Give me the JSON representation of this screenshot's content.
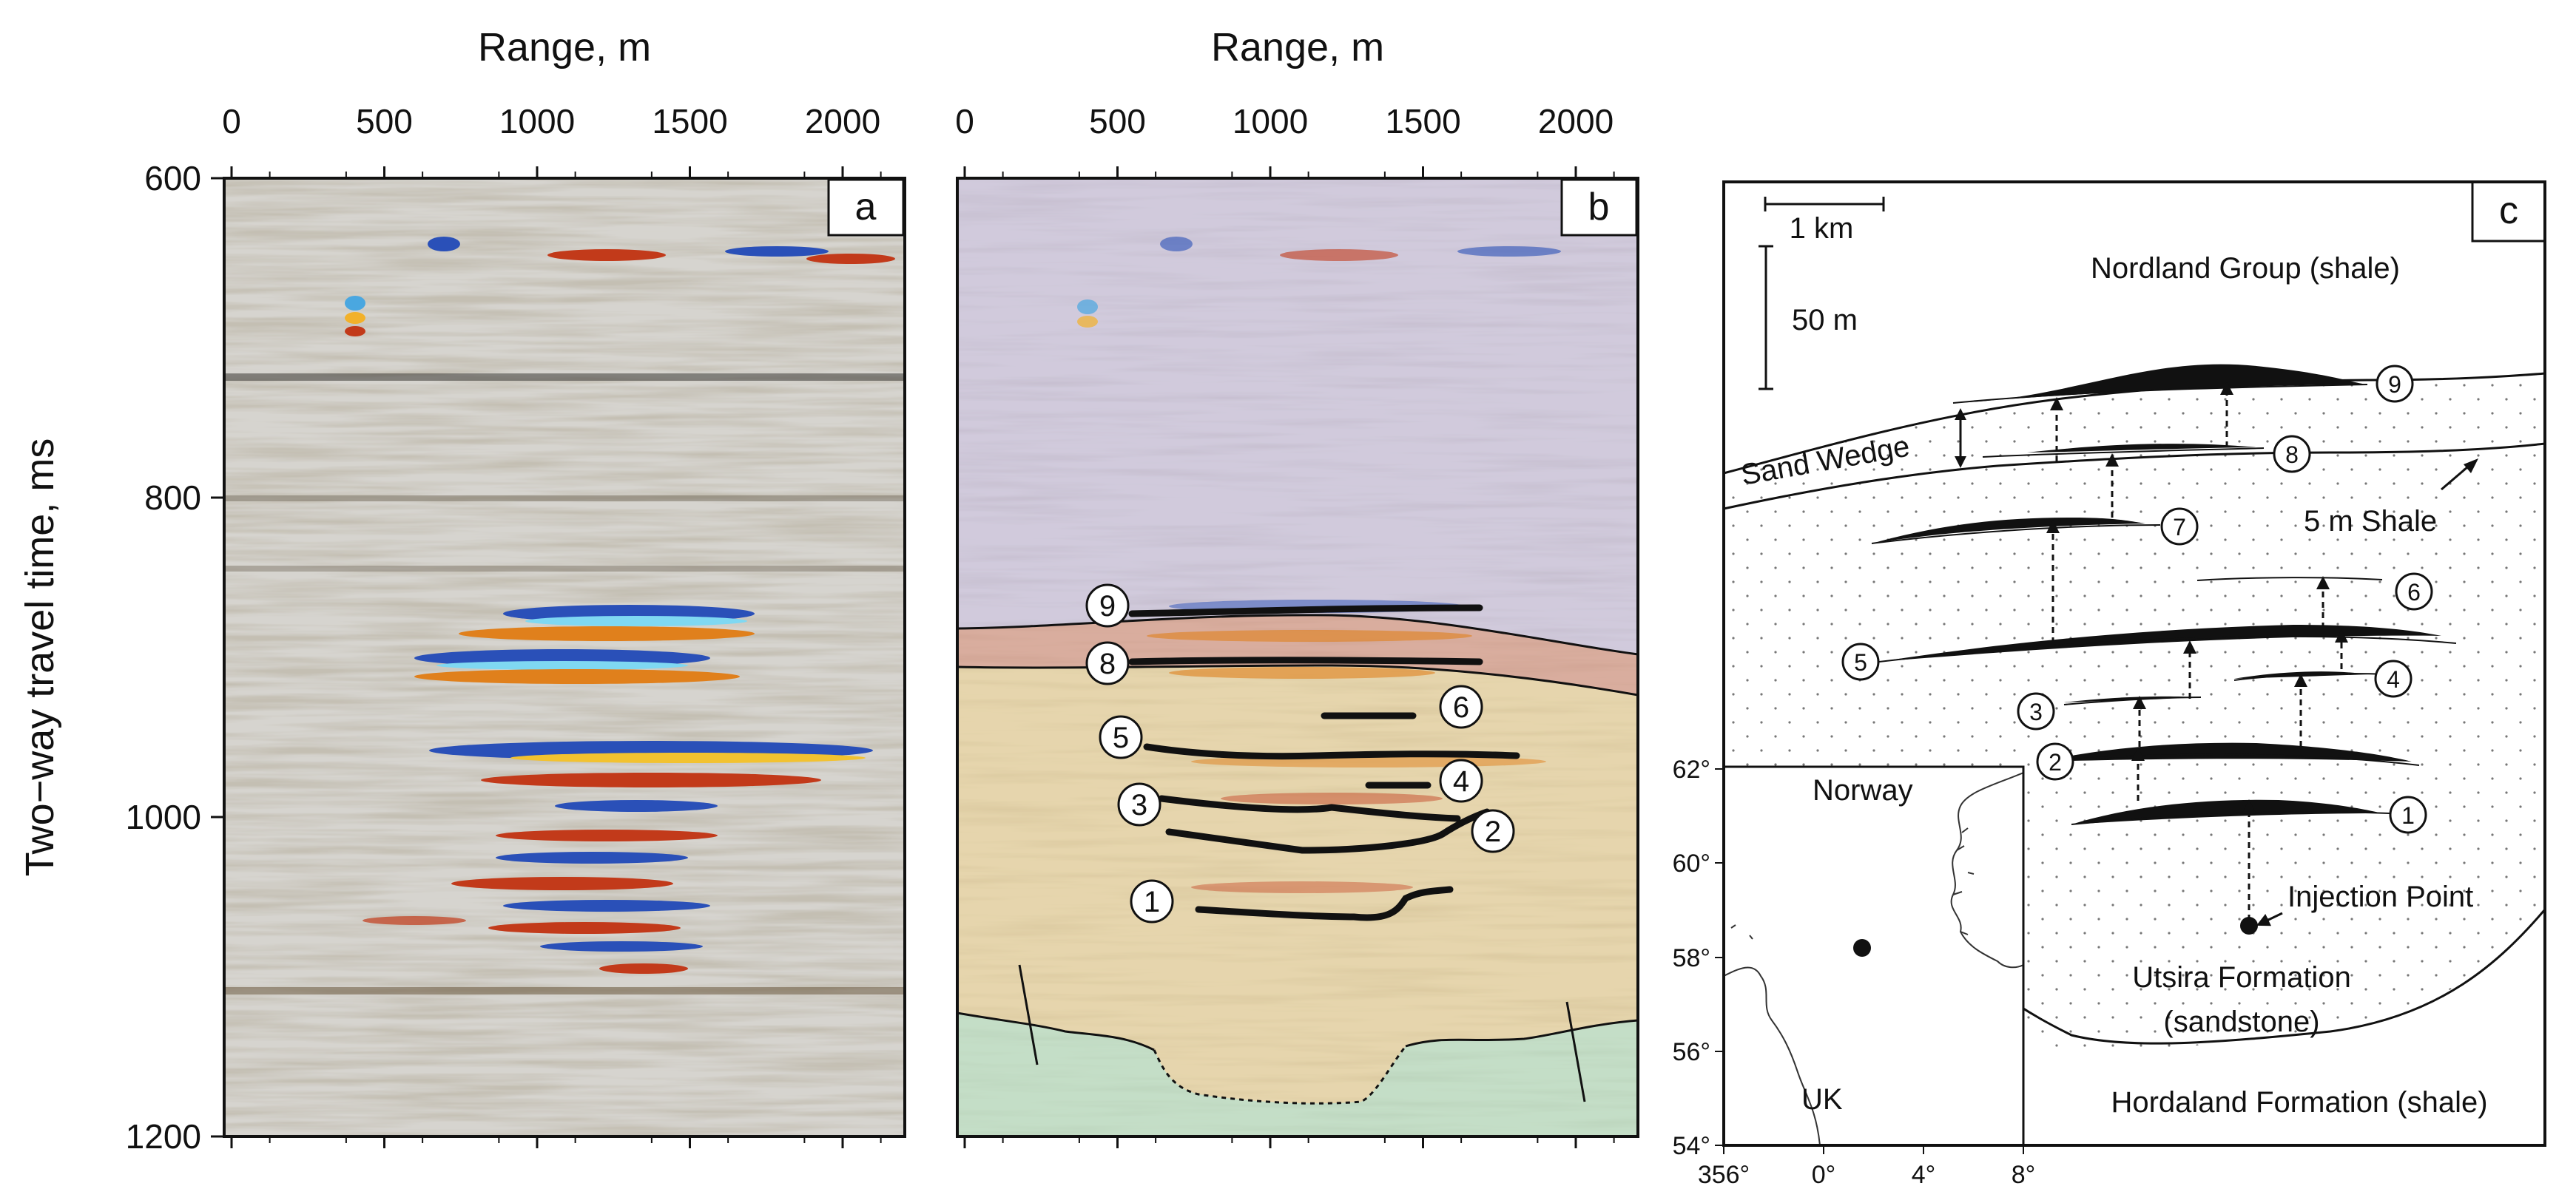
{
  "panel_a": {
    "letter": "a",
    "top_axis_title": "Range, m",
    "left_axis_title": "Two−way travel time, ms",
    "x_ticks": [
      "0",
      "500",
      "1000",
      "1500",
      "2000"
    ],
    "y_ticks": [
      "600",
      "800",
      "1000",
      "1200"
    ]
  },
  "panel_b": {
    "letter": "b",
    "top_axis_title": "Range, m",
    "x_ticks": [
      "0",
      "500",
      "1000",
      "1500",
      "2000"
    ],
    "horizon_labels": [
      "9",
      "8",
      "6",
      "5",
      "4",
      "3",
      "2",
      "1"
    ],
    "layer_colors": {
      "nordland": "#cfc6e0",
      "sand_wedge": "#d9a08e",
      "utsira": "#ecd6a0",
      "hordaland": "#bfe0c4"
    }
  },
  "panel_c": {
    "letter": "c",
    "scale_h": "1 km",
    "scale_v": "50 m",
    "nordland": "Nordland Group (shale)",
    "sand_wedge": "Sand Wedge",
    "shale5": "5 m Shale",
    "injection": "Injection Point",
    "utsira_1": "Utsira Formation",
    "utsira_2": "(sandstone)",
    "hordaland": "Hordaland Formation (shale)",
    "layer_numbers": [
      "9",
      "8",
      "7",
      "6",
      "5",
      "4",
      "3",
      "2",
      "1"
    ]
  },
  "inset_map": {
    "norway": "Norway",
    "uk": "UK",
    "lat_ticks": [
      "62°",
      "60°",
      "58°",
      "56°",
      "54°"
    ],
    "lon_ticks": [
      "356°",
      "0°",
      "4°",
      "8°"
    ]
  }
}
